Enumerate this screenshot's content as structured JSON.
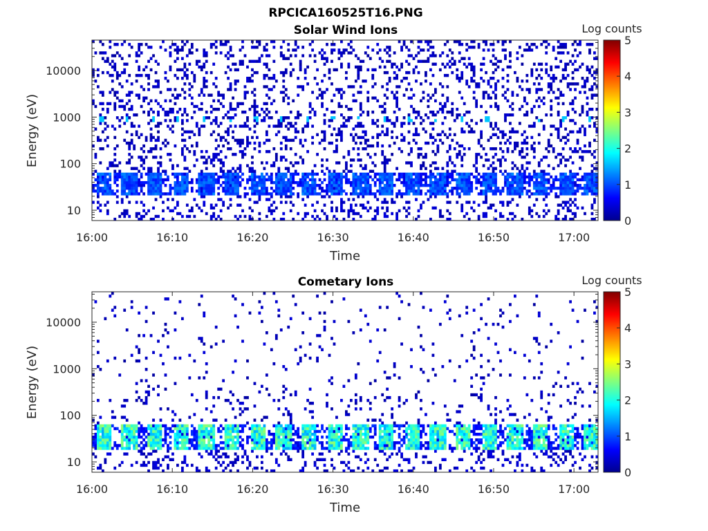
{
  "figure": {
    "filename": "RPCICA160525T16.PNG"
  },
  "colorbar": {
    "label": "Log counts",
    "ticks": [
      "0",
      "1",
      "2",
      "3",
      "4",
      "5"
    ],
    "range": [
      0,
      5
    ]
  },
  "chart_data": [
    {
      "type": "heatmap",
      "title": "Solar Wind Ions",
      "xlabel": "Time",
      "ylabel": "Energy (eV)",
      "x_ticks": [
        "16:00",
        "16:10",
        "16:20",
        "16:30",
        "16:40",
        "16:50",
        "17:00"
      ],
      "y_ticks": [
        "10",
        "100",
        "1000",
        "10000"
      ],
      "y_scale": "log",
      "ylim": [
        6,
        45000
      ],
      "xlim_minutes": [
        0,
        63
      ],
      "z_range": [
        0,
        5
      ],
      "features": {
        "low_energy_band_eV": [
          20,
          60
        ],
        "band_peak_log_counts": 1.3,
        "scan_period_minutes": 3.2,
        "proton_peak_eV": 850,
        "proton_peak_log_counts": 1.6,
        "background_log_counts": 0.3,
        "background_density": 0.2
      }
    },
    {
      "type": "heatmap",
      "title": "Cometary Ions",
      "xlabel": "Time",
      "ylabel": "Energy (eV)",
      "x_ticks": [
        "16:00",
        "16:10",
        "16:20",
        "16:30",
        "16:40",
        "16:50",
        "17:00"
      ],
      "y_ticks": [
        "10",
        "100",
        "1000",
        "10000"
      ],
      "y_scale": "log",
      "ylim": [
        6,
        45000
      ],
      "xlim_minutes": [
        0,
        63
      ],
      "z_range": [
        0,
        5
      ],
      "features": {
        "low_energy_band_eV": [
          18,
          60
        ],
        "band_peak_log_counts": 2.6,
        "scan_period_minutes": 3.2,
        "background_log_counts": 0.3,
        "background_density": 0.04
      }
    }
  ]
}
